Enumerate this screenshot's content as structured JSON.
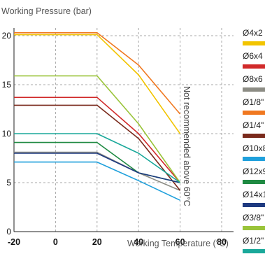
{
  "chart_data": {
    "type": "line",
    "ylabel": "Working Pressure (bar)",
    "xlabel": "Working Temperature (°C)",
    "annotation": "Not recommended above 60°C",
    "xlim": [
      -20,
      80
    ],
    "ylim": [
      0,
      21
    ],
    "x_ticks": [
      -20,
      0,
      20,
      40,
      60,
      80
    ],
    "y_ticks": [
      0,
      5,
      10,
      15,
      20
    ],
    "grid": "dashed",
    "legend_position": "right",
    "series": [
      {
        "name": "Ø4x2",
        "color": "#f2c400",
        "points": [
          [
            -20,
            20.1
          ],
          [
            20,
            20.1
          ],
          [
            40,
            16
          ],
          [
            60,
            10
          ]
        ]
      },
      {
        "name": "Ø6x4",
        "color": "#d12a2a",
        "points": [
          [
            -20,
            13.7
          ],
          [
            20,
            13.7
          ],
          [
            40,
            10
          ],
          [
            60,
            5
          ]
        ]
      },
      {
        "name": "Ø8x6",
        "color": "#8c8c84",
        "points": [
          [
            -20,
            8.1
          ],
          [
            20,
            8.1
          ],
          [
            40,
            6
          ],
          [
            60,
            4.2
          ]
        ]
      },
      {
        "name": "Ø1/8\"",
        "color": "#f07820",
        "points": [
          [
            -20,
            20.3
          ],
          [
            20,
            20.3
          ],
          [
            40,
            17
          ],
          [
            60,
            12
          ]
        ]
      },
      {
        "name": "Ø1/4\"",
        "color": "#7a2a1c",
        "points": [
          [
            -20,
            12.9
          ],
          [
            20,
            12.9
          ],
          [
            40,
            9.5
          ],
          [
            60,
            4.2
          ]
        ]
      },
      {
        "name": "Ø10x8",
        "color": "#1fa0dc",
        "points": [
          [
            -20,
            7.1
          ],
          [
            20,
            7.1
          ],
          [
            40,
            5.2
          ],
          [
            60,
            3.2
          ]
        ]
      },
      {
        "name": "Ø12x9",
        "color": "#1f8a42",
        "points": [
          [
            -20,
            9.1
          ],
          [
            20,
            9.1
          ],
          [
            40,
            6
          ],
          [
            60,
            5
          ]
        ]
      },
      {
        "name": "Ø14x1",
        "color": "#1e3a80",
        "points": [
          [
            -20,
            8
          ],
          [
            20,
            8
          ],
          [
            40,
            6
          ],
          [
            60,
            5
          ]
        ]
      },
      {
        "name": "Ø3/8\"",
        "color": "#9ac43a",
        "points": [
          [
            -20,
            15.9
          ],
          [
            20,
            15.9
          ],
          [
            40,
            11
          ],
          [
            60,
            5
          ]
        ]
      },
      {
        "name": "Ø1/2\"",
        "color": "#1aa89a",
        "points": [
          [
            -20,
            10
          ],
          [
            20,
            10
          ],
          [
            40,
            8
          ],
          [
            60,
            5
          ]
        ]
      }
    ]
  }
}
